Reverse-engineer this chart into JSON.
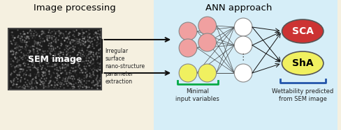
{
  "bg_left": "#f5f0e0",
  "bg_right": "#d6eef8",
  "sem_box_color": "#1a1a1a",
  "sem_text": "SEM image",
  "title_left": "Image processing",
  "title_right": "ANN approach",
  "pink_color": "#f0a0a0",
  "yellow_color": "#f0f060",
  "white_node_color": "#ffffff",
  "sca_fill": "#cc3333",
  "sha_fill": "#f0f060",
  "arrow_color": "#111111",
  "bracket_color_green": "#00aa44",
  "bracket_color_blue": "#2255aa",
  "label_minimal": "Minimal\ninput variables",
  "label_wettability": "Wettability predicted\nfrom SEM image",
  "label_arrow": "Irregular\nsurface\nnano-structure\nparameter\nextraction",
  "label_sca": "SCA",
  "label_sha": "ShA"
}
